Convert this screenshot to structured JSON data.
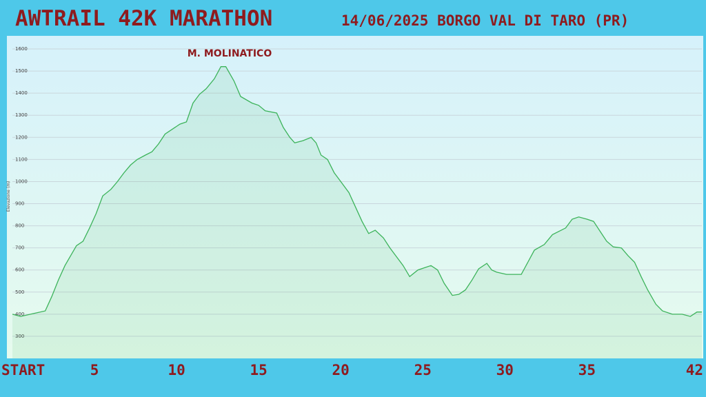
{
  "chart_data": {
    "type": "area",
    "title": "AWTRAIL 42K MARATHON",
    "subtitle": "14/06/2025  BORGO VAL DI TARO (PR)",
    "y_label": "Elevazione (m)",
    "annotation": "M. MOLINATICO",
    "color": "#3cb35a",
    "grid": true,
    "xlim": [
      0,
      42
    ],
    "ylim": [
      200,
      1650
    ],
    "yticks": [
      300,
      400,
      500,
      600,
      700,
      800,
      900,
      1000,
      1100,
      1200,
      1300,
      1400,
      1500,
      1600
    ],
    "xticks": [
      {
        "value": 0,
        "label": "START"
      },
      5,
      10,
      15,
      20,
      25,
      30,
      35,
      42
    ],
    "x": [
      0,
      0.5,
      1.1,
      2.0,
      2.4,
      2.8,
      3.2,
      3.9,
      4.3,
      4.7,
      5.1,
      5.5,
      6.0,
      6.4,
      6.8,
      7.2,
      7.6,
      8.1,
      8.5,
      8.9,
      9.3,
      9.7,
      10.2,
      10.6,
      11.0,
      11.4,
      11.8,
      12.3,
      12.7,
      13.0,
      13.5,
      13.9,
      14.6,
      15.0,
      15.4,
      16.1,
      16.5,
      16.9,
      17.2,
      17.7,
      18.2,
      18.5,
      18.8,
      19.2,
      19.6,
      20.0,
      20.5,
      20.9,
      21.3,
      21.7,
      22.1,
      22.6,
      23.0,
      23.4,
      23.8,
      24.2,
      24.7,
      25.1,
      25.5,
      25.9,
      26.3,
      26.8,
      27.2,
      27.6,
      28.0,
      28.4,
      28.9,
      29.2,
      29.5,
      30.1,
      31.0,
      31.4,
      31.8,
      32.4,
      32.9,
      33.3,
      33.7,
      34.1,
      34.5,
      35.0,
      35.4,
      35.8,
      36.2,
      36.6,
      37.1,
      37.5,
      37.9,
      38.3,
      38.7,
      39.2,
      39.6,
      40.2,
      40.8,
      41.3,
      41.7,
      42.0
    ],
    "values": [
      400,
      390,
      400,
      415,
      480,
      555,
      620,
      710,
      730,
      790,
      855,
      935,
      965,
      1000,
      1040,
      1075,
      1100,
      1120,
      1135,
      1170,
      1215,
      1235,
      1260,
      1270,
      1355,
      1395,
      1420,
      1465,
      1520,
      1520,
      1455,
      1385,
      1355,
      1345,
      1320,
      1310,
      1245,
      1200,
      1175,
      1185,
      1200,
      1175,
      1120,
      1100,
      1040,
      1000,
      950,
      885,
      820,
      765,
      780,
      745,
      700,
      660,
      620,
      570,
      600,
      610,
      620,
      600,
      540,
      485,
      490,
      510,
      555,
      605,
      630,
      600,
      590,
      580,
      580,
      635,
      690,
      715,
      760,
      775,
      790,
      830,
      840,
      830,
      820,
      775,
      730,
      705,
      700,
      665,
      635,
      570,
      510,
      445,
      415,
      400,
      400,
      390,
      410,
      410
    ]
  }
}
